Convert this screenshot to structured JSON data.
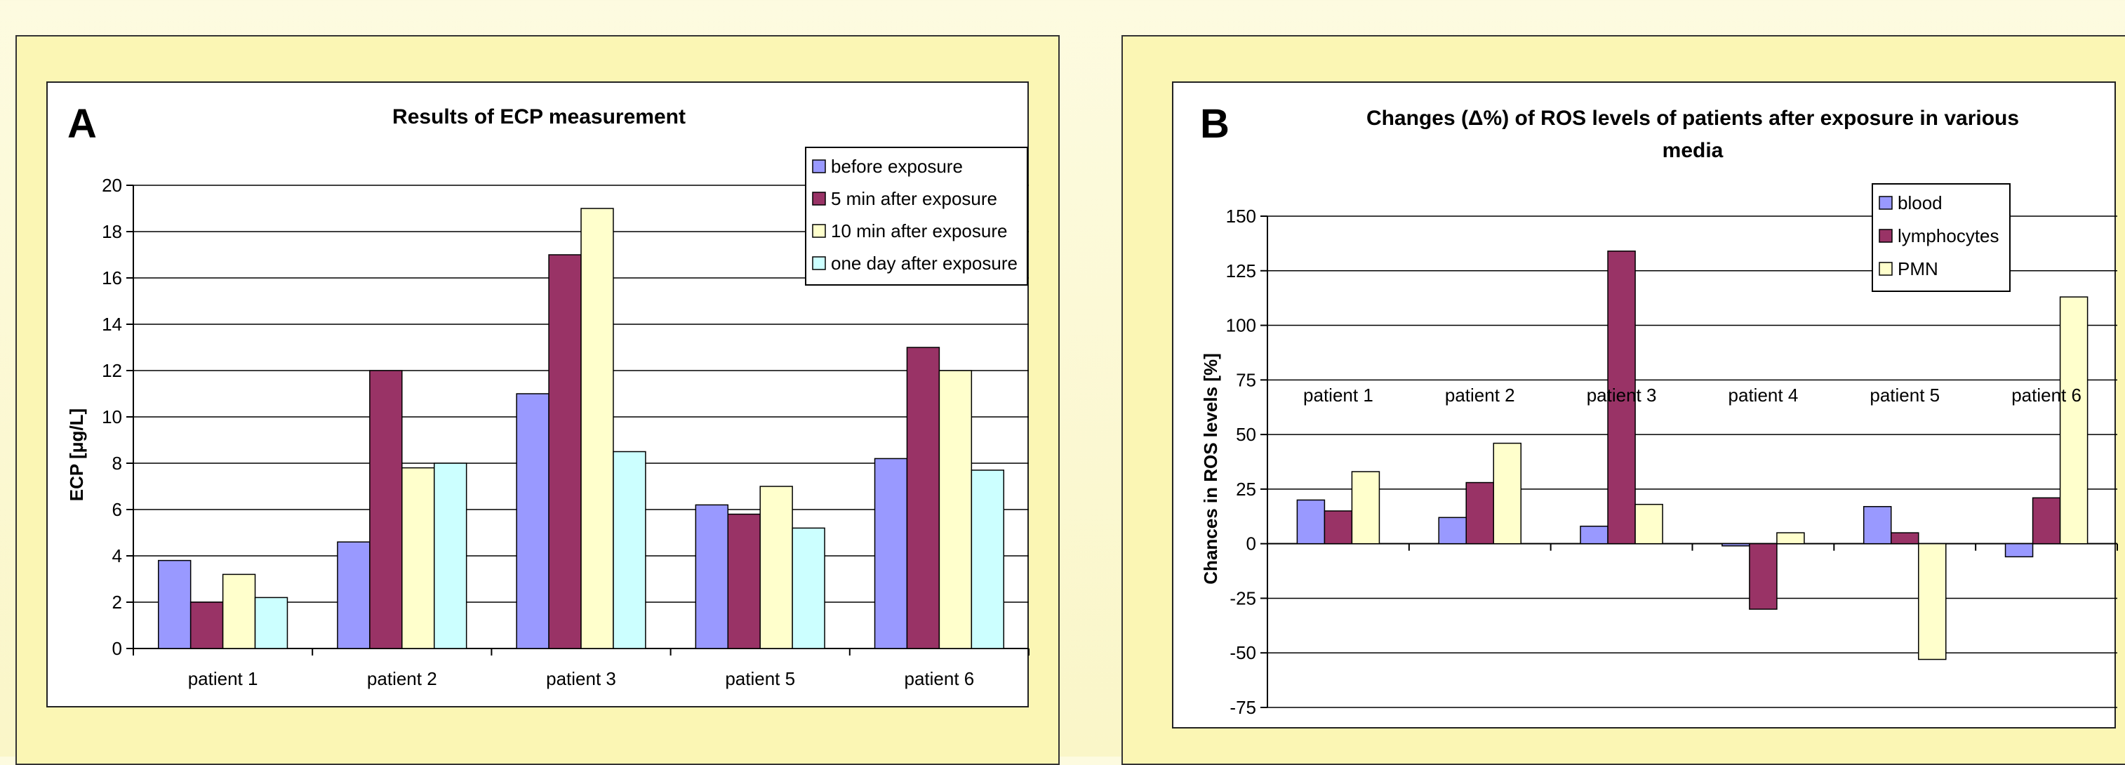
{
  "chart_data": [
    {
      "type": "bar",
      "panel": "A",
      "title": "Results of ECP measurement",
      "xlabel": "",
      "ylabel": "ECP [μg/L]",
      "categories": [
        "patient 1",
        "patient 2",
        "patient 3",
        "patient 5",
        "patient 6"
      ],
      "series": [
        {
          "name": "before exposure",
          "values": [
            3.8,
            4.6,
            11.0,
            6.2,
            8.2
          ],
          "color": "#9999ff"
        },
        {
          "name": "5 min after exposure",
          "values": [
            2.0,
            12.0,
            17.0,
            5.8,
            13.0
          ],
          "color": "#993366"
        },
        {
          "name": "10 min after exposure",
          "values": [
            3.2,
            7.8,
            19.0,
            7.0,
            12.0
          ],
          "color": "#ffffcc"
        },
        {
          "name": "one day after exposure",
          "values": [
            2.2,
            8.0,
            8.5,
            5.2,
            7.7
          ],
          "color": "#ccffff"
        }
      ],
      "ylim": [
        0,
        20
      ],
      "yticks": [
        0,
        2,
        4,
        6,
        8,
        10,
        12,
        14,
        16,
        18,
        20
      ],
      "grid": true,
      "legend_position": "top-right"
    },
    {
      "type": "bar",
      "panel": "B",
      "title": "Changes (Δ%) of ROS levels of patients after exposure in various media",
      "title_lines": [
        "Changes (Δ%) of ROS levels of patients after exposure in various",
        "media"
      ],
      "xlabel": "",
      "ylabel": "Chances in ROS levels [%]",
      "categories": [
        "patient 1",
        "patient 2",
        "patient 3",
        "patient 4",
        "patient 5",
        "patient 6"
      ],
      "series": [
        {
          "name": "blood",
          "values": [
            20,
            12,
            8,
            -1,
            17,
            -6
          ],
          "color": "#9999ff"
        },
        {
          "name": "lymphocytes",
          "values": [
            15,
            28,
            134,
            -30,
            5,
            21
          ],
          "color": "#993366"
        },
        {
          "name": "PMN",
          "values": [
            33,
            46,
            18,
            5,
            -53,
            113
          ],
          "color": "#ffffcc"
        }
      ],
      "ylim": [
        -75,
        150
      ],
      "yticks": [
        -75,
        -50,
        -25,
        0,
        25,
        50,
        75,
        100,
        125,
        150
      ],
      "grid": true,
      "legend_position": "top-right"
    }
  ]
}
